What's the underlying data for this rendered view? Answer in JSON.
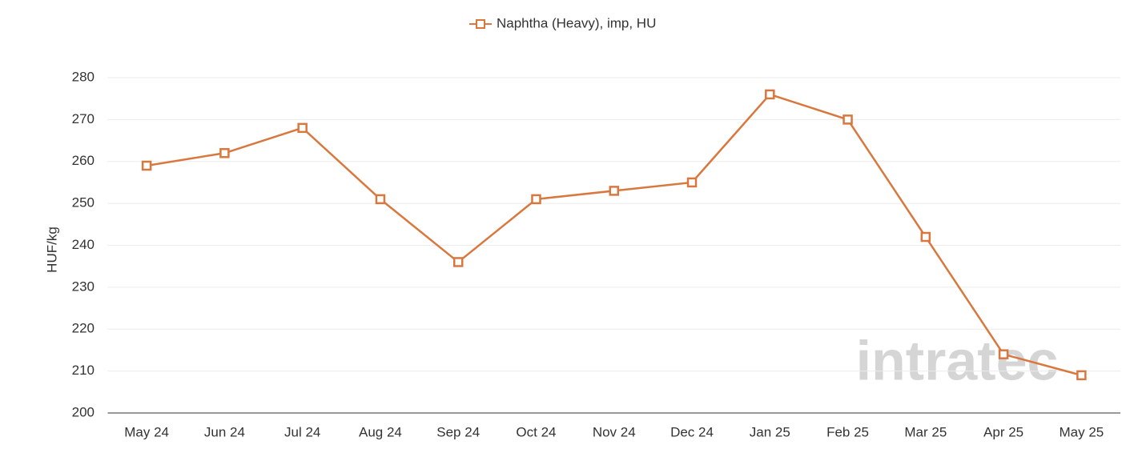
{
  "chart_data": {
    "type": "line",
    "y_label": "HUF/kg",
    "categories": [
      "May 24",
      "Jun 24",
      "Jul 24",
      "Aug 24",
      "Sep 24",
      "Oct 24",
      "Nov 24",
      "Dec 24",
      "Jan 25",
      "Feb 25",
      "Mar 25",
      "Apr 25",
      "May 25"
    ],
    "series": [
      {
        "name": "Naphtha (Heavy), imp, HU",
        "color": "#d9783e",
        "values": [
          259,
          262,
          268,
          251,
          236,
          251,
          253,
          255,
          276,
          270,
          242,
          214,
          209
        ]
      }
    ],
    "ylim": [
      200,
      280
    ],
    "yticks": [
      200,
      210,
      220,
      230,
      240,
      250,
      260,
      270,
      280
    ],
    "grid": true,
    "legend": "top",
    "watermark": "intratec"
  }
}
